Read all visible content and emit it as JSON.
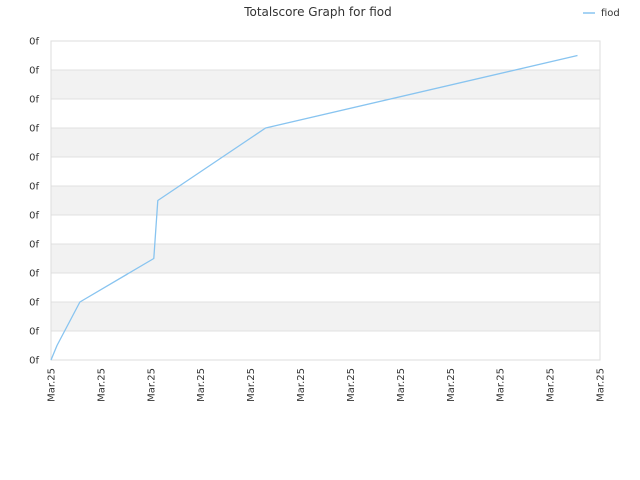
{
  "chart_data": {
    "type": "line",
    "title": "Totalscore Graph for fiod",
    "xlabel": "",
    "ylabel": "",
    "x_tick_labels": [
      "Mar.25",
      "Mar.25",
      "Mar.25",
      "Mar.25",
      "Mar.25",
      "Mar.25",
      "Mar.25",
      "Mar.25",
      "Mar.25",
      "Mar.25",
      "Mar.25",
      "Mar.25"
    ],
    "y_tick_labels": [
      "0f",
      "0f",
      "0f",
      "0f",
      "0f",
      "0f",
      "0f",
      "0f",
      "0f",
      "0f",
      "0f",
      "0f"
    ],
    "xlim": [
      0,
      11
    ],
    "ylim": [
      0,
      11
    ],
    "grid": "horizontal bands",
    "legend_position": "top-right",
    "colors": {
      "series": "#88c4f0",
      "band": "#f2f2f2",
      "grid": "#e0e0e0",
      "axis": "#dddddd"
    },
    "series": [
      {
        "name": "fiod",
        "points": [
          [
            0.0,
            0.0
          ],
          [
            0.12,
            0.5
          ],
          [
            0.58,
            2.0
          ],
          [
            2.06,
            3.5
          ],
          [
            2.14,
            5.5
          ],
          [
            4.3,
            8.0
          ],
          [
            10.55,
            10.5
          ]
        ]
      }
    ]
  }
}
